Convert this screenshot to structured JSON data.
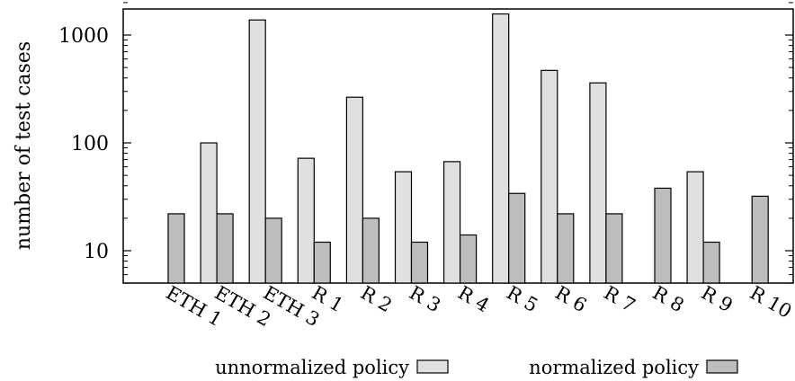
{
  "chart_data": {
    "type": "bar",
    "title": "",
    "xlabel": "",
    "ylabel": "number of test cases",
    "yscale": "log",
    "ylim": [
      5,
      2000
    ],
    "yticks": [
      10,
      100,
      1000
    ],
    "ytick_labels": [
      "10",
      "100",
      "1000"
    ],
    "grid": false,
    "legend_position": "bottom",
    "categories": [
      "ETH 1",
      "ETH 2",
      "ETH 3",
      "R 1",
      "R 2",
      "R 3",
      "R 4",
      "R 5",
      "R 6",
      "R 7",
      "R 8",
      "R 9",
      "R 10"
    ],
    "series": [
      {
        "name": "unnormalized policy",
        "color": "#e0e0e0",
        "values": [
          null,
          100,
          1380,
          72,
          265,
          54,
          67,
          1570,
          470,
          360,
          null,
          54,
          null
        ]
      },
      {
        "name": "normalized policy",
        "color": "#bdbdbd",
        "values": [
          22,
          22,
          20,
          12,
          20,
          12,
          14,
          34,
          22,
          22,
          38,
          12,
          32
        ]
      }
    ]
  }
}
